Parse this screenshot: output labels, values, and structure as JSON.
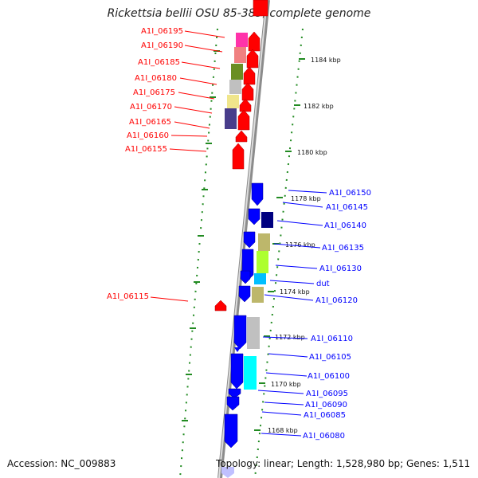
{
  "title": "Rickettsia bellii OSU 85-389, complete genome",
  "accession": "Accession: NC_009883",
  "summary": "Topology: linear; Length: 1,528,980 bp; Genes: 1,511",
  "colors": {
    "forward": "#ff0000",
    "reverse": "#0000ff",
    "tick": "#228b22"
  },
  "kbp_ticks": [
    "1184 kbp",
    "1182 kbp",
    "1180 kbp",
    "1178 kbp",
    "1176 kbp",
    "1174 kbp",
    "1172 kbp",
    "1170 kbp",
    "1168 kbp"
  ],
  "forward_genes": [
    "A1I_06195",
    "A1I_06190",
    "A1I_06185",
    "A1I_06180",
    "A1I_06175",
    "A1I_06170",
    "A1I_06165",
    "A1I_06160",
    "A1I_06155",
    "A1I_06115"
  ],
  "reverse_genes": [
    "A1I_06150",
    "A1I_06145",
    "A1I_06140",
    "A1I_06135",
    "A1I_06130",
    "dut",
    "A1I_06120",
    "A1I_06110",
    "A1I_06105",
    "A1I_06100",
    "A1I_06095",
    "A1I_06090",
    "A1I_06085",
    "A1I_06080"
  ]
}
